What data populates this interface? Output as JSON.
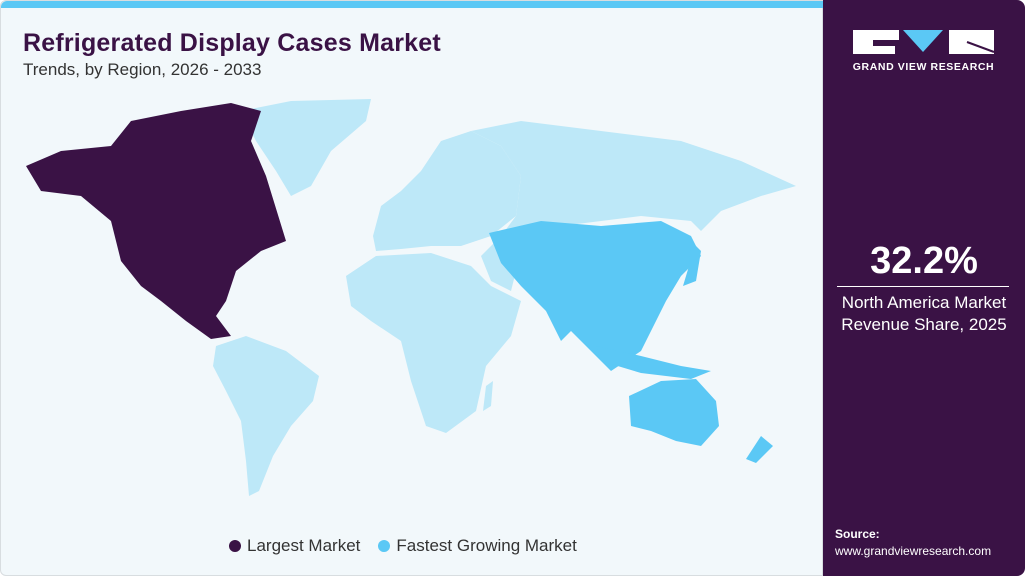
{
  "header": {
    "title": "Refrigerated Display Cases Market",
    "subtitle": "Trends, by Region, 2026 - 2033"
  },
  "map": {
    "regions": [
      {
        "name": "North America",
        "category": "Largest Market"
      },
      {
        "name": "Asia Pacific",
        "category": "Fastest Growing Market"
      }
    ],
    "colors": {
      "largest": "#3a1245",
      "fastest": "#5bc8f5",
      "other": "#bde8f8"
    }
  },
  "legend": {
    "items": [
      {
        "label": "Largest Market",
        "color": "#3a1245"
      },
      {
        "label": "Fastest Growing Market",
        "color": "#5bc8f5"
      }
    ]
  },
  "sidebar": {
    "logo_text": "GRAND VIEW RESEARCH",
    "stat_value": "32.2%",
    "stat_label_line1": "North America Market",
    "stat_label_line2": "Revenue Share, 2025",
    "source_label": "Source:",
    "source_url": "www.grandviewresearch.com"
  }
}
